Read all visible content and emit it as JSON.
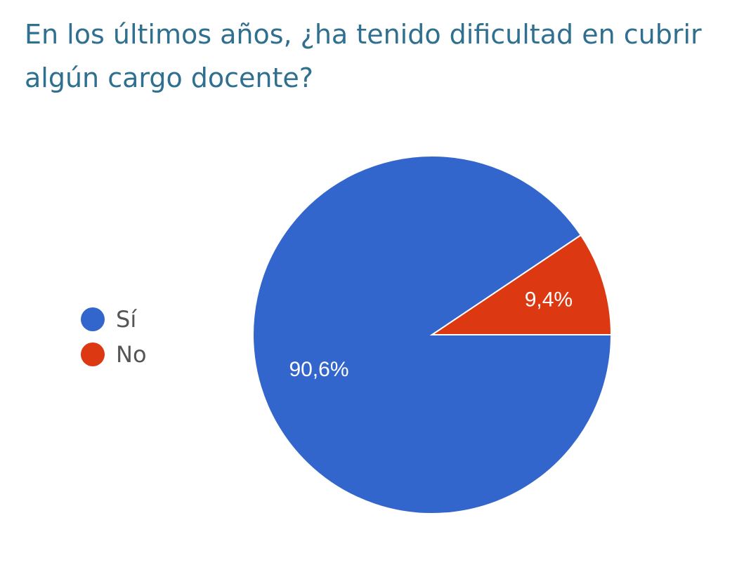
{
  "chart_data": {
    "type": "pie",
    "title": "En los últimos años, ¿ha tenido dificultad en cubrir algún cargo docente?",
    "categories": [
      "Sí",
      "No"
    ],
    "values": [
      90.6,
      9.4
    ],
    "labels": [
      "90,6%",
      "9,4%"
    ],
    "colors": [
      "#3366cc",
      "#dc3912"
    ],
    "legend_position": "left",
    "start": "3 o'clock, counter-clockwise for No"
  }
}
